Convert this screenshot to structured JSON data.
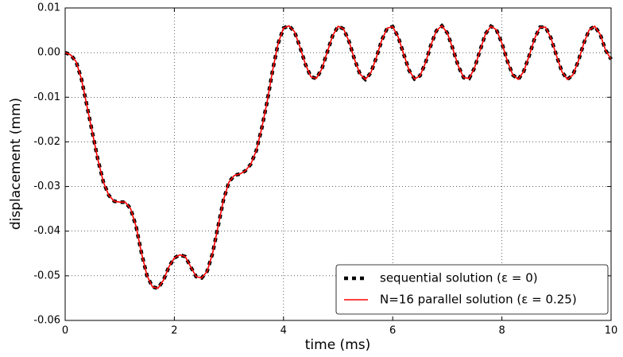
{
  "chart_data": {
    "type": "line",
    "xlabel": "time (ms)",
    "ylabel": "displacement (mm)",
    "x": [
      0,
      0.1,
      0.2,
      0.3,
      0.4,
      0.5,
      0.6,
      0.7,
      0.8,
      0.9,
      1,
      1.1,
      1.2,
      1.3,
      1.4,
      1.5,
      1.6,
      1.7,
      1.8,
      1.9,
      2,
      2.1,
      2.2,
      2.3,
      2.4,
      2.5,
      2.6,
      2.7,
      2.8,
      2.9,
      3,
      3.1,
      3.2,
      3.3,
      3.4,
      3.5,
      3.6,
      3.7,
      3.8,
      3.9,
      4,
      4.1,
      4.2,
      4.3,
      4.4,
      4.5,
      4.6,
      4.7,
      4.8,
      4.9,
      5,
      5.1,
      5.2,
      5.3,
      5.4,
      5.5,
      5.6,
      5.7,
      5.8,
      5.9,
      6,
      6.1,
      6.2,
      6.3,
      6.4,
      6.5,
      6.6,
      6.7,
      6.8,
      6.9,
      7,
      7.1,
      7.2,
      7.3,
      7.4,
      7.5,
      7.6,
      7.7,
      7.8,
      7.9,
      8,
      8.1,
      8.2,
      8.3,
      8.4,
      8.5,
      8.6,
      8.7,
      8.8,
      8.9,
      9,
      9.1,
      9.2,
      9.3,
      9.4,
      9.5,
      9.6,
      9.7,
      9.8,
      9.9,
      10
    ],
    "series": [
      {
        "name": "sequential solution (ε = 0)",
        "color": "#000000",
        "style": "dashed",
        "values": [
          0,
          -0.0005,
          -0.002,
          -0.006,
          -0.012,
          -0.018,
          -0.024,
          -0.029,
          -0.032,
          -0.0333,
          -0.0335,
          -0.0335,
          -0.035,
          -0.039,
          -0.045,
          -0.05,
          -0.0525,
          -0.0528,
          -0.051,
          -0.048,
          -0.046,
          -0.0453,
          -0.0457,
          -0.048,
          -0.0502,
          -0.0505,
          -0.049,
          -0.045,
          -0.039,
          -0.033,
          -0.029,
          -0.0275,
          -0.0272,
          -0.0265,
          -0.025,
          -0.022,
          -0.017,
          -0.011,
          -0.004,
          0.002,
          0.0055,
          0.006,
          0.0047,
          0.0013,
          -0.0026,
          -0.0054,
          -0.0058,
          -0.0037,
          0.0001,
          0.0038,
          0.0059,
          0.0053,
          0.0025,
          -0.0015,
          -0.0048,
          -0.006,
          -0.0045,
          -0.0011,
          0.0028,
          0.0055,
          0.0058,
          0.0035,
          -0.0003,
          -0.004,
          -0.0059,
          -0.0052,
          -0.0023,
          0.0017,
          0.0049,
          0.006,
          0.0044,
          0.0009,
          -0.003,
          -0.0056,
          -0.0058,
          -0.0034,
          0.0005,
          0.0042,
          0.0059,
          0.0051,
          0.0021,
          -0.0019,
          -0.005,
          -0.006,
          -0.0042,
          -0.0007,
          0.0032,
          0.0057,
          0.0057,
          0.0032,
          -0.0007,
          -0.0043,
          -0.006,
          -0.005,
          -0.0019,
          0.0021,
          0.0051,
          0.0059,
          0.0041,
          0.0005,
          -0.0015
        ]
      },
      {
        "name": "N=16 parallel solution (ε = 0.25)",
        "color": "#ff0000",
        "style": "solid",
        "values": [
          0,
          -0.0005,
          -0.002,
          -0.006,
          -0.012,
          -0.018,
          -0.024,
          -0.029,
          -0.032,
          -0.0333,
          -0.0335,
          -0.0335,
          -0.035,
          -0.039,
          -0.045,
          -0.05,
          -0.0525,
          -0.0528,
          -0.051,
          -0.048,
          -0.046,
          -0.0453,
          -0.0457,
          -0.048,
          -0.0502,
          -0.0505,
          -0.049,
          -0.045,
          -0.039,
          -0.033,
          -0.029,
          -0.0275,
          -0.0272,
          -0.0265,
          -0.025,
          -0.022,
          -0.017,
          -0.011,
          -0.004,
          0.002,
          0.0055,
          0.006,
          0.0047,
          0.0013,
          -0.0026,
          -0.0054,
          -0.0058,
          -0.0037,
          0.0001,
          0.0038,
          0.0059,
          0.0053,
          0.0025,
          -0.0015,
          -0.0048,
          -0.006,
          -0.0045,
          -0.0011,
          0.0028,
          0.0055,
          0.0058,
          0.0035,
          -0.0003,
          -0.004,
          -0.0059,
          -0.0052,
          -0.0023,
          0.0017,
          0.0049,
          0.006,
          0.0044,
          0.0009,
          -0.003,
          -0.0056,
          -0.0058,
          -0.0034,
          0.0005,
          0.0042,
          0.0059,
          0.0051,
          0.0021,
          -0.0019,
          -0.005,
          -0.006,
          -0.0042,
          -0.0007,
          0.0032,
          0.0057,
          0.0057,
          0.0032,
          -0.0007,
          -0.0043,
          -0.006,
          -0.005,
          -0.0019,
          0.0021,
          0.0051,
          0.0059,
          0.0041,
          0.0005,
          -0.0015
        ]
      }
    ],
    "xlim": [
      0,
      10
    ],
    "xticks": [
      0,
      2,
      4,
      6,
      8,
      10
    ],
    "ylim": [
      -0.06,
      0.01
    ],
    "yticks": [
      -0.06,
      -0.05,
      -0.04,
      -0.03,
      -0.02,
      -0.01,
      {
        "value": 0,
        "label": "0.00"
      },
      0.01
    ],
    "grid": true,
    "legend": "lower right"
  }
}
